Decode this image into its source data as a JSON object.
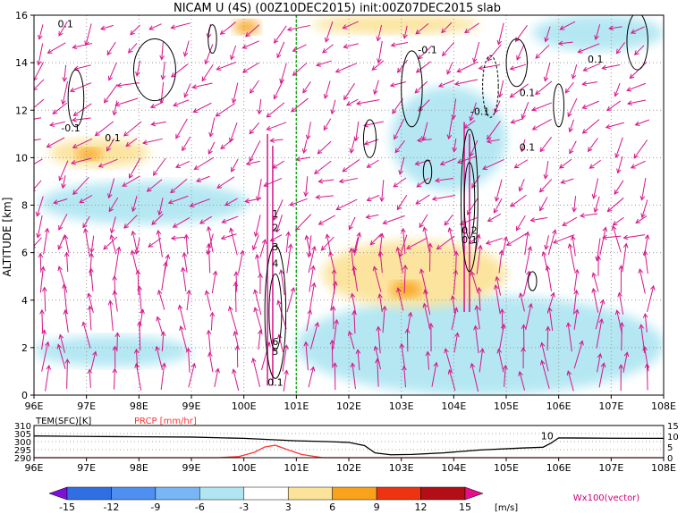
{
  "title": "NICAM U (4S) (00Z10DEC2015) init:00Z07DEC2015 slab",
  "chart_data": [
    {
      "type": "heatmap",
      "name": "main-cross-section",
      "ylabel": "ALTITUDE [km]",
      "x_ticks": [
        "96E",
        "97E",
        "98E",
        "99E",
        "100E",
        "101E",
        "102E",
        "103E",
        "104E",
        "105E",
        "106E",
        "107E",
        "108E"
      ],
      "x_range": [
        96,
        108
      ],
      "y_ticks": [
        "0",
        "2",
        "4",
        "6",
        "8",
        "10",
        "12",
        "14",
        "16"
      ],
      "y_range": [
        0,
        16
      ],
      "grid": true,
      "reference_line_lon": 101,
      "reference_line_color": "#22aa22",
      "contour_labels": [
        {
          "text": "0.1",
          "lon": 96.6,
          "alt": 15.5
        },
        {
          "text": "-0.1",
          "lon": 96.7,
          "alt": 11.1
        },
        {
          "text": "0.1",
          "lon": 97.5,
          "alt": 10.7
        },
        {
          "text": "-0.1",
          "lon": 103.5,
          "alt": 14.4
        },
        {
          "text": "0.1",
          "lon": 106.7,
          "alt": 14.0
        },
        {
          "text": "0.1",
          "lon": 105.4,
          "alt": 12.6
        },
        {
          "text": "-0.1",
          "lon": 104.5,
          "alt": 11.8
        },
        {
          "text": "0.1",
          "lon": 105.4,
          "alt": 10.3
        },
        {
          "text": "0.2",
          "lon": 104.3,
          "alt": 6.8
        },
        {
          "text": "0.1",
          "lon": 104.3,
          "alt": 6.4
        },
        {
          "text": "1",
          "lon": 100.6,
          "alt": 7.5
        },
        {
          "text": "2",
          "lon": 100.6,
          "alt": 6.9
        },
        {
          "text": "3",
          "lon": 100.6,
          "alt": 6.1
        },
        {
          "text": "4",
          "lon": 100.6,
          "alt": 5.4
        },
        {
          "text": "6",
          "lon": 100.6,
          "alt": 2.1
        },
        {
          "text": "5",
          "lon": 100.6,
          "alt": 1.7
        },
        {
          "text": "0.1",
          "lon": 100.6,
          "alt": 0.4
        }
      ],
      "shaded_regions": [
        {
          "level": "-6",
          "color": "#b0e6f2",
          "lon_range": [
            96.1,
            100.1
          ],
          "alt_range": [
            7.2,
            9.0
          ]
        },
        {
          "level": "-6",
          "color": "#b0e6f2",
          "lon_range": [
            102.8,
            105.0
          ],
          "alt_range": [
            8.6,
            13.0
          ]
        },
        {
          "level": "-6",
          "color": "#b0e6f2",
          "lon_range": [
            105.5,
            108.0
          ],
          "alt_range": [
            14.5,
            16.0
          ]
        },
        {
          "level": "-6",
          "color": "#b0e6f2",
          "lon_range": [
            101.0,
            108.0
          ],
          "alt_range": [
            0.0,
            4.2
          ]
        },
        {
          "level": "-6",
          "color": "#b0e6f2",
          "lon_range": [
            96.0,
            99.0
          ],
          "alt_range": [
            1.2,
            2.5
          ]
        },
        {
          "level": "3",
          "color": "#fce39a",
          "lon_range": [
            101.5,
            105.0
          ],
          "alt_range": [
            3.7,
            6.5
          ]
        },
        {
          "level": "3",
          "color": "#fce39a",
          "lon_range": [
            96.3,
            98.2
          ],
          "alt_range": [
            9.6,
            10.8
          ]
        },
        {
          "level": "3",
          "color": "#fce39a",
          "lon_range": [
            101.3,
            104.5
          ],
          "alt_range": [
            15.2,
            16.0
          ]
        },
        {
          "level": "6",
          "color": "#f9a21b",
          "lon_range": [
            96.8,
            97.3
          ],
          "alt_range": [
            9.9,
            10.4
          ]
        },
        {
          "level": "6",
          "color": "#f9a21b",
          "lon_range": [
            99.8,
            100.3
          ],
          "alt_range": [
            15.2,
            15.8
          ]
        },
        {
          "level": "6",
          "color": "#f9a21b",
          "lon_range": [
            102.8,
            103.4
          ],
          "alt_range": [
            4.1,
            4.8
          ]
        }
      ],
      "vector_label": "Wx100(vector)"
    },
    {
      "type": "line",
      "name": "bottom-panel",
      "left_label": "TEM(SFC)[K]",
      "right_label": "PRCP [mm/hr]",
      "x_ticks": [
        "96E",
        "97E",
        "98E",
        "99E",
        "100E",
        "101E",
        "102E",
        "103E",
        "104E",
        "105E",
        "106E",
        "107E",
        "108E"
      ],
      "left_ticks": [
        "310",
        "305",
        "300",
        "295",
        "290"
      ],
      "right_ticks": [
        "15",
        "10",
        "5",
        "0"
      ],
      "temp_range": [
        290,
        310
      ],
      "prcp_range": [
        0,
        15
      ],
      "marker_label": "10",
      "series": [
        {
          "name": "TEM(SFC)[K]",
          "color": "#000000",
          "x": [
            96,
            97,
            98,
            99,
            100,
            101,
            101.6,
            102,
            102.3,
            102.5,
            102.8,
            103.2,
            103.8,
            104.5,
            105.3,
            105.7,
            105.85,
            106,
            106.5,
            107,
            108
          ],
          "y": [
            303.5,
            303.2,
            303,
            302.8,
            302,
            300.5,
            300,
            299.5,
            297.5,
            293,
            291.8,
            292,
            293,
            294.8,
            296,
            296.5,
            299,
            302.3,
            302.2,
            302.1,
            302
          ]
        },
        {
          "name": "PRCP [mm/hr]",
          "color": "#ff3333",
          "x": [
            96,
            99.5,
            99.9,
            100.2,
            100.4,
            100.6,
            100.8,
            101.1,
            101.5,
            108
          ],
          "y": [
            0,
            0,
            0.5,
            2.5,
            5,
            5.8,
            4,
            1.5,
            0,
            0
          ]
        }
      ]
    }
  ],
  "colorbar": {
    "ticks": [
      "-15",
      "-12",
      "-9",
      "-6",
      "-3",
      "3",
      "6",
      "9",
      "12",
      "15"
    ],
    "unit": "[m/s]",
    "colors": [
      "#7f0fd9",
      "#2f6fe3",
      "#4f8ff0",
      "#78b6f5",
      "#b0e6f2",
      "#ffffff",
      "#fce39a",
      "#f9a21b",
      "#ee3311",
      "#b30d15",
      "#e60e8a"
    ]
  },
  "vector_legend": "Wx100(vector)"
}
